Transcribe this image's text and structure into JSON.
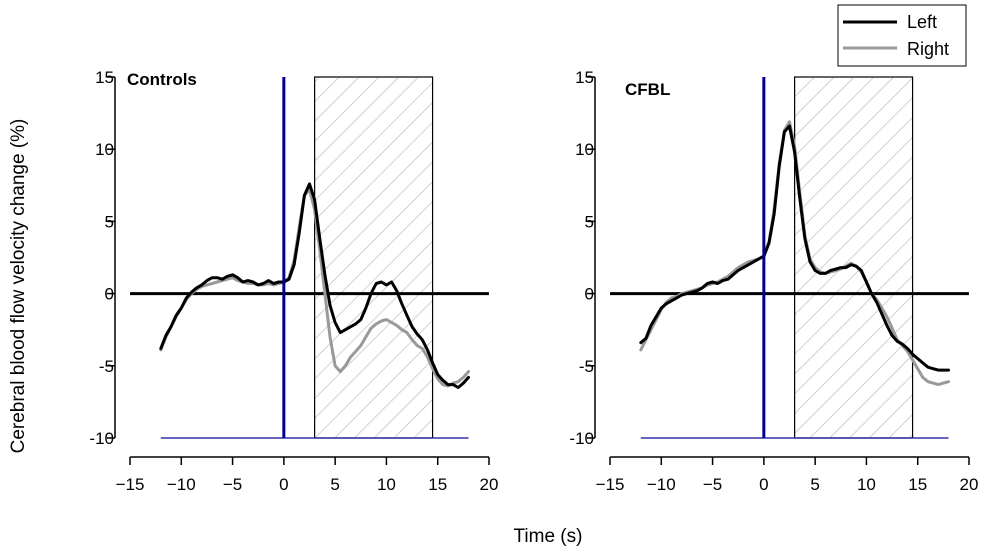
{
  "figure": {
    "xlabel": "Time (s)",
    "ylabel": "Cerebral blood flow velocity change (%)",
    "legend": {
      "placement": "top-right",
      "entries": [
        {
          "label": "Left",
          "color": "#000000"
        },
        {
          "label": "Right",
          "color": "#999999"
        }
      ]
    }
  },
  "chart_data": [
    {
      "type": "line",
      "title": "Controls",
      "xlabel": "Time (s)",
      "ylabel": "Cerebral blood flow velocity change (%)",
      "xlim": [
        -15,
        20
      ],
      "ylim": [
        -10,
        15
      ],
      "xticks": [
        -15,
        -10,
        -5,
        0,
        5,
        10,
        15,
        20
      ],
      "yticks": [
        15,
        10,
        5,
        0,
        -5,
        -10
      ],
      "grid": false,
      "reference_lines": {
        "zero_line_y": 0,
        "zero_line_x_range": [
          -15,
          20
        ],
        "onset_x": 0,
        "onset_color": "#00008b",
        "baseline_y": -10,
        "baseline_x_range": [
          -12,
          18
        ],
        "baseline_color": "#3333aa"
      },
      "shaded_interval": {
        "x": [
          3,
          14.5
        ],
        "y": [
          -10,
          15
        ],
        "pattern": "diagonal-hatch"
      },
      "series": [
        {
          "name": "Left",
          "color": "#000000",
          "x": [
            -12,
            -11.5,
            -11,
            -10.5,
            -10,
            -9.5,
            -9,
            -8.5,
            -8,
            -7.5,
            -7,
            -6.5,
            -6,
            -5.5,
            -5,
            -4.5,
            -4,
            -3.5,
            -3,
            -2.5,
            -2,
            -1.5,
            -1,
            -0.5,
            0,
            0.5,
            1,
            1.5,
            2,
            2.5,
            3,
            3.5,
            4,
            4.5,
            5,
            5.5,
            6,
            6.5,
            7,
            7.5,
            8,
            8.5,
            9,
            9.5,
            10,
            10.5,
            11,
            11.5,
            12,
            12.5,
            13,
            13.5,
            14,
            14.5,
            15,
            15.5,
            16,
            16.5,
            17,
            17.5,
            18
          ],
          "values": [
            -3.8,
            -2.9,
            -2.3,
            -1.5,
            -1.0,
            -0.3,
            0.1,
            0.4,
            0.6,
            0.9,
            1.1,
            1.1,
            1.0,
            1.2,
            1.3,
            1.1,
            0.8,
            0.9,
            0.8,
            0.6,
            0.7,
            0.9,
            0.7,
            0.8,
            0.8,
            1.0,
            2.0,
            4.2,
            6.8,
            7.6,
            6.5,
            3.8,
            1.3,
            -0.8,
            -2.0,
            -2.7,
            -2.5,
            -2.3,
            -2.1,
            -1.8,
            -1.0,
            0.0,
            0.7,
            0.8,
            0.6,
            0.8,
            0.2,
            -0.7,
            -1.5,
            -2.3,
            -2.8,
            -3.2,
            -3.9,
            -4.8,
            -5.6,
            -6.0,
            -6.3,
            -6.3,
            -6.5,
            -6.2,
            -5.8
          ]
        },
        {
          "name": "Right",
          "color": "#999999",
          "x": [
            -12,
            -11.5,
            -11,
            -10.5,
            -10,
            -9.5,
            -9,
            -8.5,
            -8,
            -7.5,
            -7,
            -6.5,
            -6,
            -5.5,
            -5,
            -4.5,
            -4,
            -3.5,
            -3,
            -2.5,
            -2,
            -1.5,
            -1,
            -0.5,
            0,
            0.5,
            1,
            1.5,
            2,
            2.5,
            3,
            3.5,
            4,
            4.5,
            5,
            5.5,
            6,
            6.5,
            7,
            7.5,
            8,
            8.5,
            9,
            9.5,
            10,
            10.5,
            11,
            11.5,
            12,
            12.5,
            13,
            13.5,
            14,
            14.5,
            15,
            15.5,
            16,
            16.5,
            17,
            17.5,
            18
          ],
          "values": [
            -3.9,
            -3.0,
            -2.3,
            -1.6,
            -1.0,
            -0.4,
            0.0,
            0.3,
            0.5,
            0.6,
            0.7,
            0.8,
            0.9,
            1.0,
            1.1,
            0.9,
            0.8,
            0.7,
            0.7,
            0.6,
            0.6,
            0.7,
            0.6,
            0.7,
            0.8,
            1.1,
            2.3,
            4.6,
            6.8,
            7.2,
            5.8,
            3.0,
            0.0,
            -3.0,
            -5.0,
            -5.4,
            -5.0,
            -4.4,
            -4.0,
            -3.6,
            -3.0,
            -2.4,
            -2.1,
            -1.9,
            -1.8,
            -2.0,
            -2.2,
            -2.5,
            -2.7,
            -3.2,
            -3.6,
            -3.8,
            -4.4,
            -5.2,
            -5.9,
            -6.3,
            -6.4,
            -6.2,
            -6.1,
            -5.8,
            -5.4
          ]
        }
      ]
    },
    {
      "type": "line",
      "title": "CFBL",
      "xlabel": "Time (s)",
      "ylabel": "",
      "xlim": [
        -15,
        20
      ],
      "ylim": [
        -10,
        15
      ],
      "xticks": [
        -15,
        -10,
        -5,
        0,
        5,
        10,
        15,
        20
      ],
      "yticks": [
        15,
        10,
        5,
        0,
        -5,
        -10
      ],
      "grid": false,
      "reference_lines": {
        "zero_line_y": 0,
        "zero_line_x_range": [
          -15,
          20
        ],
        "onset_x": 0,
        "onset_color": "#00008b",
        "baseline_y": -10,
        "baseline_x_range": [
          -12,
          18
        ],
        "baseline_color": "#3333aa"
      },
      "shaded_interval": {
        "x": [
          3,
          14.5
        ],
        "y": [
          -10,
          15
        ],
        "pattern": "diagonal-hatch"
      },
      "series": [
        {
          "name": "Left",
          "color": "#000000",
          "x": [
            -12,
            -11.5,
            -11,
            -10.5,
            -10,
            -9.5,
            -9,
            -8.5,
            -8,
            -7.5,
            -7,
            -6.5,
            -6,
            -5.5,
            -5,
            -4.5,
            -4,
            -3.5,
            -3,
            -2.5,
            -2,
            -1.5,
            -1,
            -0.5,
            0,
            0.5,
            1,
            1.5,
            2,
            2.5,
            3,
            3.5,
            4,
            4.5,
            5,
            5.5,
            6,
            6.5,
            7,
            7.5,
            8,
            8.5,
            9,
            9.5,
            10,
            10.5,
            11,
            11.5,
            12,
            12.5,
            13,
            13.5,
            14,
            14.5,
            15,
            15.5,
            16,
            16.5,
            17,
            17.5,
            18
          ],
          "values": [
            -3.4,
            -3.1,
            -2.2,
            -1.6,
            -1.0,
            -0.7,
            -0.5,
            -0.3,
            -0.1,
            0.0,
            0.1,
            0.2,
            0.4,
            0.7,
            0.8,
            0.7,
            0.9,
            1.0,
            1.3,
            1.6,
            1.8,
            2.0,
            2.2,
            2.4,
            2.6,
            3.5,
            5.5,
            8.8,
            11.2,
            11.6,
            9.8,
            6.6,
            3.8,
            2.2,
            1.6,
            1.4,
            1.4,
            1.6,
            1.7,
            1.8,
            1.8,
            2.0,
            1.9,
            1.6,
            0.8,
            0.0,
            -0.6,
            -1.4,
            -2.2,
            -2.9,
            -3.3,
            -3.5,
            -3.8,
            -4.2,
            -4.5,
            -4.8,
            -5.1,
            -5.2,
            -5.3,
            -5.3,
            -5.3
          ]
        },
        {
          "name": "Right",
          "color": "#999999",
          "x": [
            -12,
            -11.5,
            -11,
            -10.5,
            -10,
            -9.5,
            -9,
            -8.5,
            -8,
            -7.5,
            -7,
            -6.5,
            -6,
            -5.5,
            -5,
            -4.5,
            -4,
            -3.5,
            -3,
            -2.5,
            -2,
            -1.5,
            -1,
            -0.5,
            0,
            0.5,
            1,
            1.5,
            2,
            2.5,
            3,
            3.5,
            4,
            4.5,
            5,
            5.5,
            6,
            6.5,
            7,
            7.5,
            8,
            8.5,
            9,
            9.5,
            10,
            10.5,
            11,
            11.5,
            12,
            12.5,
            13,
            13.5,
            14,
            14.5,
            15,
            15.5,
            16,
            16.5,
            17,
            17.5,
            18
          ],
          "values": [
            -3.9,
            -3.2,
            -2.5,
            -1.8,
            -1.1,
            -0.6,
            -0.3,
            -0.2,
            0.0,
            0.1,
            0.2,
            0.3,
            0.4,
            0.6,
            0.7,
            0.8,
            1.0,
            1.2,
            1.5,
            1.8,
            2.0,
            2.2,
            2.3,
            2.4,
            2.6,
            3.6,
            5.8,
            9.0,
            11.3,
            11.9,
            10.2,
            7.0,
            4.0,
            2.4,
            1.8,
            1.5,
            1.4,
            1.5,
            1.6,
            1.7,
            1.9,
            2.1,
            1.9,
            1.5,
            0.8,
            0.0,
            -0.4,
            -1.0,
            -1.6,
            -2.4,
            -3.2,
            -3.6,
            -4.0,
            -4.6,
            -5.2,
            -5.8,
            -6.1,
            -6.2,
            -6.3,
            -6.2,
            -6.1
          ]
        }
      ]
    }
  ]
}
